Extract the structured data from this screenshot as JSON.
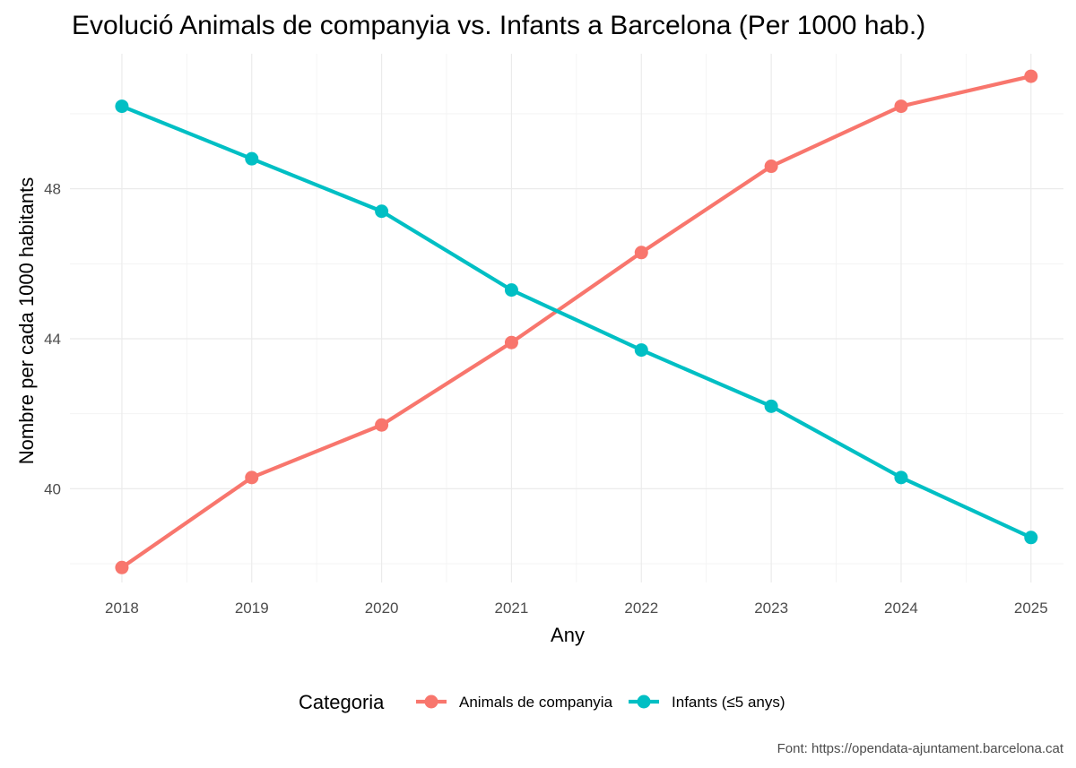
{
  "chart_data": {
    "type": "line",
    "title": "Evolució Animals de companyia vs. Infants a Barcelona (Per 1000 hab.)",
    "xlabel": "Any",
    "ylabel": "Nombre per cada 1000 habitants",
    "caption": "Font: https://opendata-ajuntament.barcelona.cat",
    "x": [
      2018,
      2019,
      2020,
      2021,
      2022,
      2023,
      2024,
      2025
    ],
    "x_tick_labels": [
      "2018",
      "2019",
      "2020",
      "2021",
      "2022",
      "2023",
      "2024",
      "2025"
    ],
    "y_ticks": [
      40,
      44,
      48
    ],
    "y_tick_labels": [
      "40",
      "44",
      "48"
    ],
    "ylim": [
      37.5,
      51.6
    ],
    "xlim": [
      2017.6,
      2025.25
    ],
    "grid": true,
    "legend": {
      "title": "Categoria",
      "position": "bottom"
    },
    "series": [
      {
        "name": "Animals de companyia",
        "color": "#F8766D",
        "values": [
          37.9,
          40.3,
          41.7,
          43.9,
          46.3,
          48.6,
          50.2,
          51.0
        ]
      },
      {
        "name": "Infants (≤5 anys)",
        "color": "#00BFC4",
        "values": [
          50.2,
          48.8,
          47.4,
          45.3,
          43.7,
          42.2,
          40.3,
          38.7
        ]
      }
    ]
  }
}
